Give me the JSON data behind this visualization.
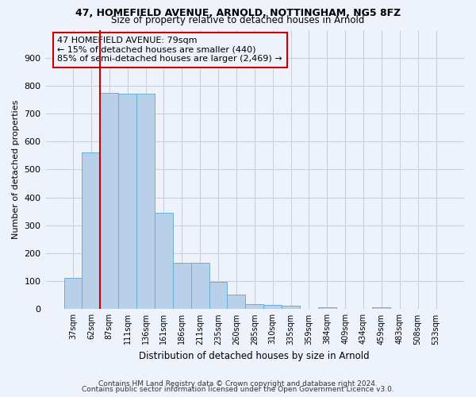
{
  "title_line1": "47, HOMEFIELD AVENUE, ARNOLD, NOTTINGHAM, NG5 8FZ",
  "title_line2": "Size of property relative to detached houses in Arnold",
  "xlabel": "Distribution of detached houses by size in Arnold",
  "ylabel": "Number of detached properties",
  "bar_heights": [
    112,
    560,
    775,
    770,
    770,
    345,
    165,
    165,
    97,
    52,
    18,
    15,
    12,
    0,
    8,
    0,
    0,
    8,
    0,
    0,
    0
  ],
  "categories": [
    "37sqm",
    "62sqm",
    "87sqm",
    "111sqm",
    "136sqm",
    "161sqm",
    "186sqm",
    "211sqm",
    "235sqm",
    "260sqm",
    "285sqm",
    "310sqm",
    "335sqm",
    "359sqm",
    "384sqm",
    "409sqm",
    "434sqm",
    "459sqm",
    "483sqm",
    "508sqm",
    "533sqm"
  ],
  "bar_color": "#b8d0e8",
  "bar_edge_color": "#6aaed6",
  "grid_color": "#c8cfe0",
  "vline_color": "#cc0000",
  "vline_x": 2.0,
  "annotation_text": "47 HOMEFIELD AVENUE: 79sqm\n← 15% of detached houses are smaller (440)\n85% of semi-detached houses are larger (2,469) →",
  "annotation_box_edgecolor": "#cc0000",
  "annotation_bg": "#eef2fb",
  "ylim_max": 1000,
  "yticks": [
    0,
    100,
    200,
    300,
    400,
    500,
    600,
    700,
    800,
    900
  ],
  "footer_line1": "Contains HM Land Registry data © Crown copyright and database right 2024.",
  "footer_line2": "Contains public sector information licensed under the Open Government Licence v3.0.",
  "bg_color": "#eef2fb",
  "title_fontsize": 9,
  "subtitle_fontsize": 8.5
}
